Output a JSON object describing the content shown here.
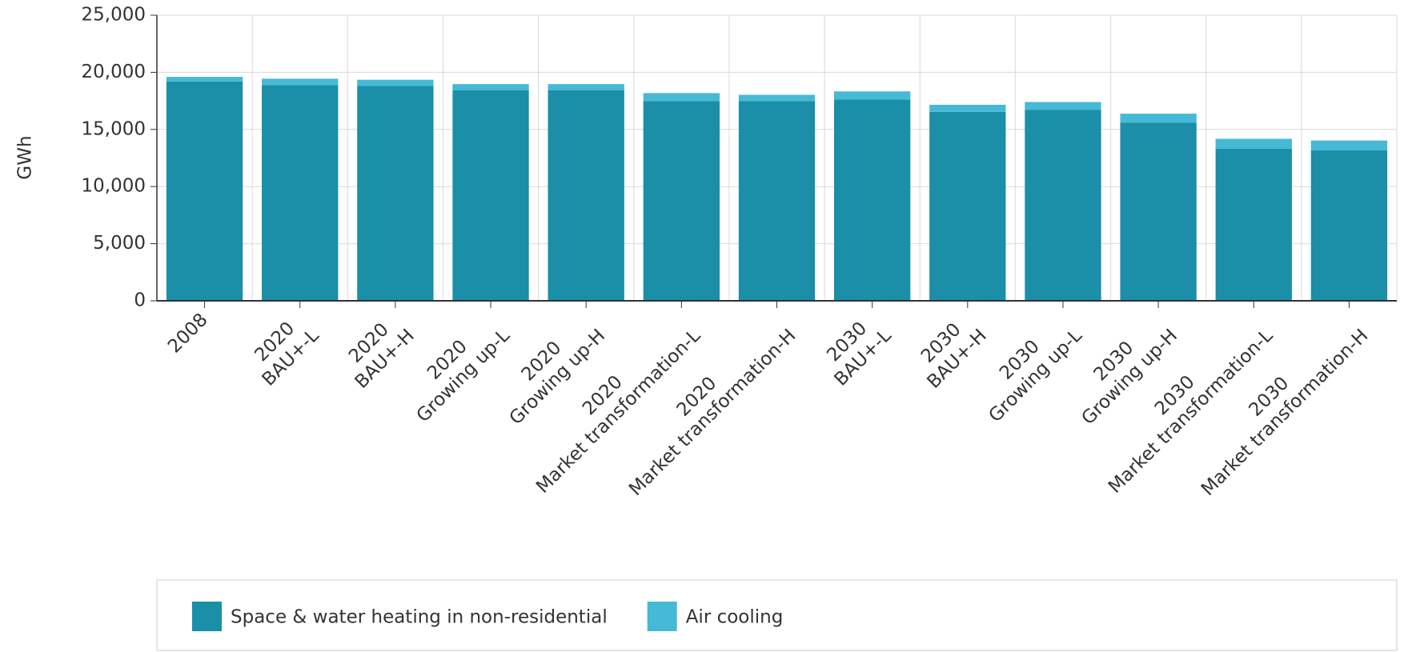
{
  "chart_data": {
    "type": "stacked_bar",
    "y_label": "GWh",
    "categories": [
      [
        "2008"
      ],
      [
        "2020",
        "BAU+-L"
      ],
      [
        "2020",
        "BAU+-H"
      ],
      [
        "2020",
        "Growing up-L"
      ],
      [
        "2020",
        "Growing up-H"
      ],
      [
        "2020",
        "Market transformation-L"
      ],
      [
        "2020",
        "Market transformation-H"
      ],
      [
        "2030",
        "BAU+-L"
      ],
      [
        "2030",
        "BAU+-H"
      ],
      [
        "2030",
        "Growing up-L"
      ],
      [
        "2030",
        "Growing up-H"
      ],
      [
        "2030",
        "Market transformation-L"
      ],
      [
        "2030",
        "Market transformation-H"
      ]
    ],
    "series": [
      {
        "name": "Space & water heating in non-residential",
        "color": "#1b8ea8",
        "values": [
          19200,
          18890,
          18800,
          18420,
          18420,
          17480,
          17480,
          17630,
          16540,
          16700,
          15600,
          13320,
          13170
        ]
      },
      {
        "name": "Air cooling",
        "color": "#45b9d6",
        "values": [
          400,
          550,
          550,
          550,
          550,
          700,
          550,
          700,
          620,
          700,
          780,
          860,
          860
        ]
      }
    ],
    "ylim": [
      0,
      25000
    ],
    "yticks": [
      {
        "value": 0,
        "label": "0"
      },
      {
        "value": 5000,
        "label": "5,000"
      },
      {
        "value": 10000,
        "label": "10,000"
      },
      {
        "value": 15000,
        "label": "15,000"
      },
      {
        "value": 20000,
        "label": "20,000"
      },
      {
        "value": 25000,
        "label": "25,000"
      }
    ],
    "grid": true,
    "legend": "bottom"
  }
}
